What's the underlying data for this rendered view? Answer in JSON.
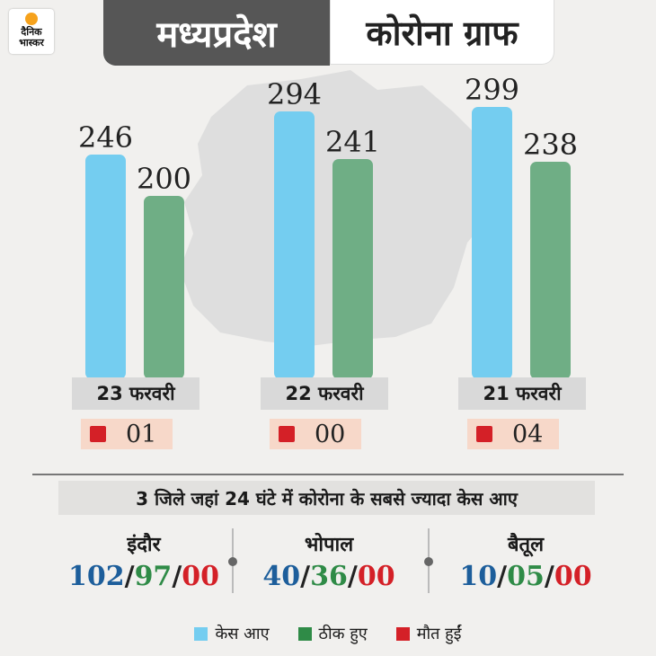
{
  "brand": {
    "logo_text": "दैनिक भास्कर"
  },
  "header": {
    "title_left": "मध्यप्रदेश",
    "title_right": "कोरोना ग्राफ"
  },
  "colors": {
    "cases": "#74cdf0",
    "recovered": "#6fae85",
    "deaths": "#d42027"
  },
  "chart_data": {
    "type": "bar",
    "title": "कोरोना ग्राफ",
    "categories": [
      "23 फरवरी",
      "22 फरवरी",
      "21 फरवरी"
    ],
    "series": [
      {
        "name": "केस आए",
        "values": [
          246,
          294,
          299
        ]
      },
      {
        "name": "ठीक हुए",
        "values": [
          200,
          241,
          238
        ]
      }
    ],
    "deaths": [
      "01",
      "00",
      "04"
    ],
    "ylim": [
      0,
      300
    ],
    "grid": false,
    "legend_position": "bottom"
  },
  "districts_heading": "3 जिले जहां 24 घंटे में कोरोना के सबसे ज्यादा केस आए",
  "districts": [
    {
      "name": "इंदौर",
      "cases": "102",
      "recovered": "97",
      "deaths": "00"
    },
    {
      "name": "भोपाल",
      "cases": "40",
      "recovered": "36",
      "deaths": "00"
    },
    {
      "name": "बैतूल",
      "cases": "10",
      "recovered": "05",
      "deaths": "00"
    }
  ],
  "separator": "/",
  "legend": [
    {
      "label": "केस आए",
      "color": "#74cdf0"
    },
    {
      "label": "ठीक हुए",
      "color": "#2f8b47"
    },
    {
      "label": "मौत हुईं",
      "color": "#d42027"
    }
  ]
}
